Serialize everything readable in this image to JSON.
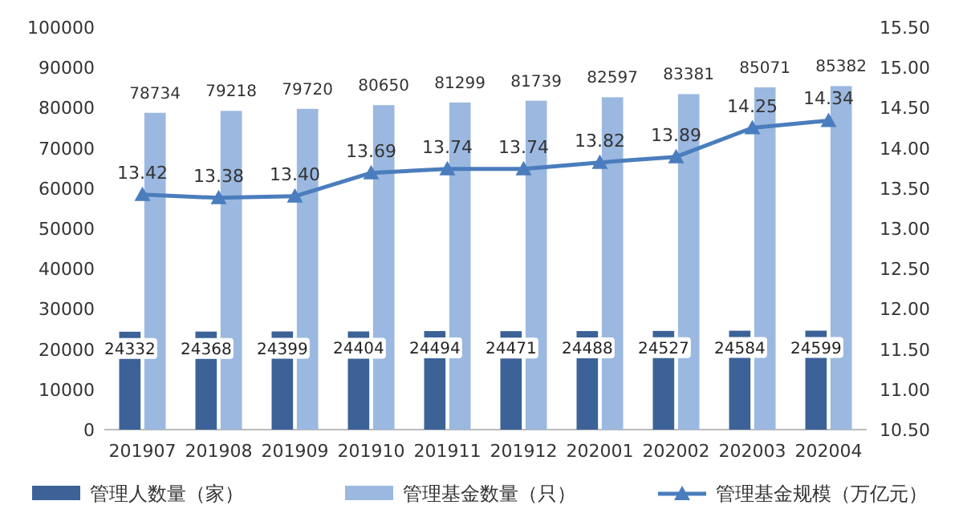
{
  "chart_data": {
    "type": "bar",
    "categories": [
      "201907",
      "201908",
      "201909",
      "201910",
      "201911",
      "201912",
      "202001",
      "202002",
      "202003",
      "202004"
    ],
    "series": [
      {
        "name": "管理人数量（家）",
        "color": "#3c6298",
        "values": [
          24332,
          24368,
          24399,
          24404,
          24494,
          24471,
          24488,
          24527,
          24584,
          24599
        ]
      },
      {
        "name": "管理基金数量（只）",
        "color": "#9bb8e0",
        "values": [
          78734,
          79218,
          79720,
          80650,
          81299,
          81739,
          82597,
          83381,
          85071,
          85382
        ]
      },
      {
        "name": "管理基金规模（万亿元）",
        "type": "line",
        "axis": "y2",
        "marker": "triangle",
        "color": "#4a7dbd",
        "values": [
          13.42,
          13.38,
          13.4,
          13.69,
          13.74,
          13.74,
          13.82,
          13.89,
          14.25,
          14.34
        ],
        "value_labels": [
          "13.42",
          "13.38",
          "13.40",
          "13.69",
          "13.74",
          "13.74",
          "13.82",
          "13.89",
          "14.25",
          "14.34"
        ]
      }
    ],
    "ylim": [
      0,
      100000
    ],
    "yticks": [
      0,
      10000,
      20000,
      30000,
      40000,
      50000,
      60000,
      70000,
      80000,
      90000,
      100000
    ],
    "y2lim": [
      10.5,
      15.5
    ],
    "y2ticks": [
      {
        "value": 10.5,
        "label": "10.50"
      },
      {
        "value": 11,
        "label": "11.00"
      },
      {
        "value": 11.5,
        "label": "11.50"
      },
      {
        "value": 12,
        "label": "12.00"
      },
      {
        "value": 12.5,
        "label": "12.50"
      },
      {
        "value": 13,
        "label": "13.00"
      },
      {
        "value": 13.5,
        "label": "13.50"
      },
      {
        "value": 14,
        "label": "14.00"
      },
      {
        "value": 14.5,
        "label": "14.50"
      },
      {
        "value": 15,
        "label": "15.00"
      },
      {
        "value": 15.5,
        "label": "15.50"
      }
    ],
    "legend": "bottom",
    "data_labels": true
  }
}
